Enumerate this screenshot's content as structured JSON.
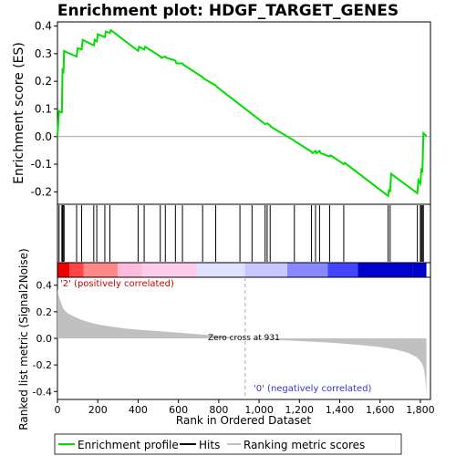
{
  "chart_data": [
    {
      "type": "line",
      "title": "Enrichment plot: HDGF_TARGET_GENES",
      "ylabel": "Enrichment score (ES)",
      "xlim": [
        0,
        1850
      ],
      "ylim": [
        -0.245,
        0.415
      ],
      "yticks": [
        -0.2,
        -0.1,
        0.0,
        0.1,
        0.2,
        0.3,
        0.4
      ],
      "ytick_labels": [
        "-0.2",
        "-0.1",
        "0.0",
        "0.1",
        "0.2",
        "0.3",
        "0.4"
      ],
      "series": [
        {
          "name": "Enrichment profile",
          "color": "#00dd00",
          "x": [
            0,
            8,
            10,
            22,
            25,
            30,
            33,
            45,
            95,
            100,
            120,
            125,
            180,
            185,
            195,
            200,
            235,
            240,
            260,
            265,
            400,
            405,
            430,
            435,
            510,
            515,
            535,
            540,
            585,
            590,
            620,
            625,
            720,
            725,
            785,
            790,
            1030,
            1040,
            1055,
            1060,
            1175,
            1180,
            1260,
            1265,
            1280,
            1285,
            1300,
            1305,
            1350,
            1355,
            1420,
            1425,
            1640,
            1645,
            1650,
            1655,
            1785,
            1790,
            1800,
            1805,
            1810,
            1815,
            1830
          ],
          "y": [
            0.0,
            0.095,
            0.09,
            0.088,
            0.24,
            0.235,
            0.31,
            0.305,
            0.29,
            0.32,
            0.315,
            0.35,
            0.33,
            0.35,
            0.345,
            0.37,
            0.36,
            0.38,
            0.375,
            0.385,
            0.31,
            0.325,
            0.315,
            0.325,
            0.29,
            0.285,
            0.29,
            0.285,
            0.275,
            0.265,
            0.265,
            0.26,
            0.215,
            0.21,
            0.185,
            0.18,
            0.045,
            0.048,
            0.04,
            0.035,
            -0.015,
            -0.018,
            -0.055,
            -0.06,
            -0.052,
            -0.06,
            -0.052,
            -0.06,
            -0.072,
            -0.068,
            -0.1,
            -0.095,
            -0.215,
            -0.19,
            -0.2,
            -0.135,
            -0.205,
            -0.158,
            -0.17,
            -0.115,
            -0.13,
            0.012,
            0.002
          ]
        }
      ]
    },
    {
      "type": "hits",
      "xlim": [
        0,
        1850
      ],
      "series": [
        {
          "name": "Hits",
          "color": "#000000",
          "x": [
            8,
            22,
            25,
            30,
            33,
            95,
            120,
            180,
            195,
            235,
            260,
            400,
            430,
            510,
            535,
            585,
            620,
            720,
            785,
            905,
            965,
            1030,
            1040,
            1055,
            1175,
            1260,
            1280,
            1300,
            1350,
            1420,
            1640,
            1650,
            1785,
            1800,
            1805,
            1810,
            1815
          ]
        }
      ]
    },
    {
      "type": "heatmap",
      "xlim": [
        0,
        1850
      ],
      "colors": [
        "#ee0000",
        "#ff4444",
        "#ff8888",
        "#ffbbdd",
        "#ffccee",
        "#e0e0ff",
        "#c8c8ff",
        "#8888ff",
        "#4444ff",
        "#0000cc"
      ],
      "x_breaks": [
        0,
        60,
        130,
        300,
        420,
        690,
        930,
        1140,
        1340,
        1490,
        1760,
        1830
      ]
    },
    {
      "type": "area",
      "ylabel": "Ranked list metric (Signal2Noise)",
      "xlabel": "Rank in Ordered Dataset",
      "xlim": [
        0,
        1850
      ],
      "ylim": [
        -0.46,
        0.46
      ],
      "xticks": [
        0,
        200,
        400,
        600,
        800,
        1000,
        1200,
        1400,
        1600,
        1800
      ],
      "xtick_labels": [
        "0",
        "200",
        "400",
        "600",
        "800",
        "1,000",
        "1,200",
        "1,400",
        "1,600",
        "1,800"
      ],
      "yticks": [
        -0.4,
        -0.2,
        0.0,
        0.2,
        0.4
      ],
      "ytick_labels": [
        "-0.4",
        "-0.2",
        "0.0",
        "0.2",
        "0.4"
      ],
      "zero_cross": 931,
      "annotations": {
        "positive": "'2' (positively correlated)",
        "negative": "'0' (negatively correlated)",
        "zero_cross": "Zero cross at 931"
      },
      "series": [
        {
          "name": "Ranking metric scores",
          "color": "#c0c0c0",
          "x": [
            0,
            5,
            15,
            30,
            50,
            80,
            120,
            160,
            200,
            260,
            330,
            420,
            520,
            620,
            720,
            820,
            931,
            1050,
            1200,
            1350,
            1500,
            1600,
            1680,
            1740,
            1780,
            1805,
            1818,
            1826,
            1830
          ],
          "y": [
            0.37,
            0.33,
            0.28,
            0.22,
            0.19,
            0.165,
            0.14,
            0.12,
            0.105,
            0.09,
            0.075,
            0.063,
            0.052,
            0.04,
            0.028,
            0.015,
            0.0,
            -0.01,
            -0.02,
            -0.032,
            -0.05,
            -0.065,
            -0.085,
            -0.11,
            -0.14,
            -0.18,
            -0.23,
            -0.33,
            -0.42
          ]
        }
      ]
    }
  ],
  "legend": {
    "items": [
      {
        "label": "Enrichment profile",
        "color": "#00dd00"
      },
      {
        "label": "Hits",
        "color": "#000000"
      },
      {
        "label": "Ranking metric scores",
        "color": "#c0c0c0"
      }
    ]
  }
}
